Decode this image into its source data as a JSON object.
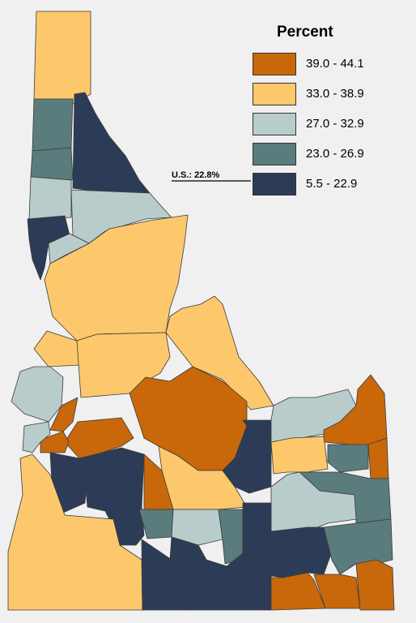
{
  "legend": {
    "title": "Percent",
    "classes": [
      {
        "label": "39.0 - 44.1",
        "color": "#c8680a"
      },
      {
        "label": "33.0 - 38.9",
        "color": "#fdc86c"
      },
      {
        "label": "27.0 - 32.9",
        "color": "#b8cccb"
      },
      {
        "label": "23.0 - 26.9",
        "color": "#5a7c7d"
      },
      {
        "label": "5.5 - 22.9",
        "color": "#2c3c57"
      }
    ]
  },
  "us_marker": {
    "label": "U.S.: 22.8%"
  }
}
